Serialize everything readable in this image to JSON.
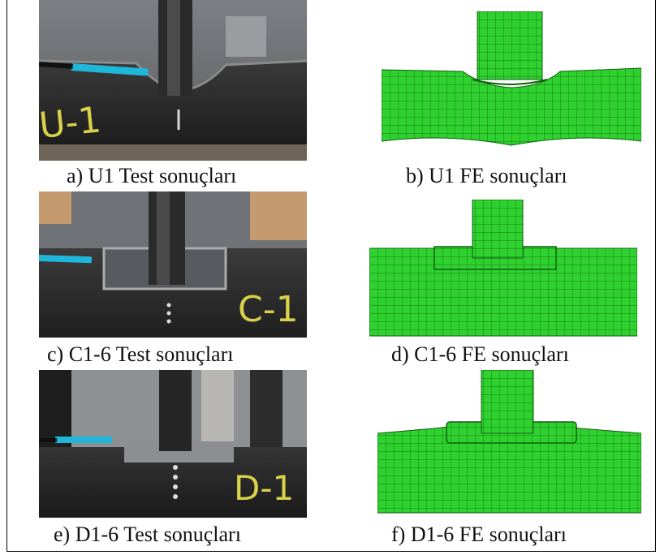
{
  "captions": {
    "a": "a) U1 Test sonuçları",
    "b": "b) U1 FE sonuçları",
    "c": "c) C1-6 Test sonuçları",
    "d": "d) C1-6 FE sonuçları",
    "e": "e) D1-6 Test sonuçları",
    "f": "f) D1-6 FE sonuçları"
  },
  "specimen_labels": {
    "u": "U-1",
    "c": "C-1",
    "d": "D-1"
  },
  "colors": {
    "fe_green": "#2fd12f",
    "mesh_line": "#0f5f0f",
    "steel": "#2b2b2b",
    "marker_blue": "#1fb7d9",
    "chalk": "#d8d14a"
  }
}
